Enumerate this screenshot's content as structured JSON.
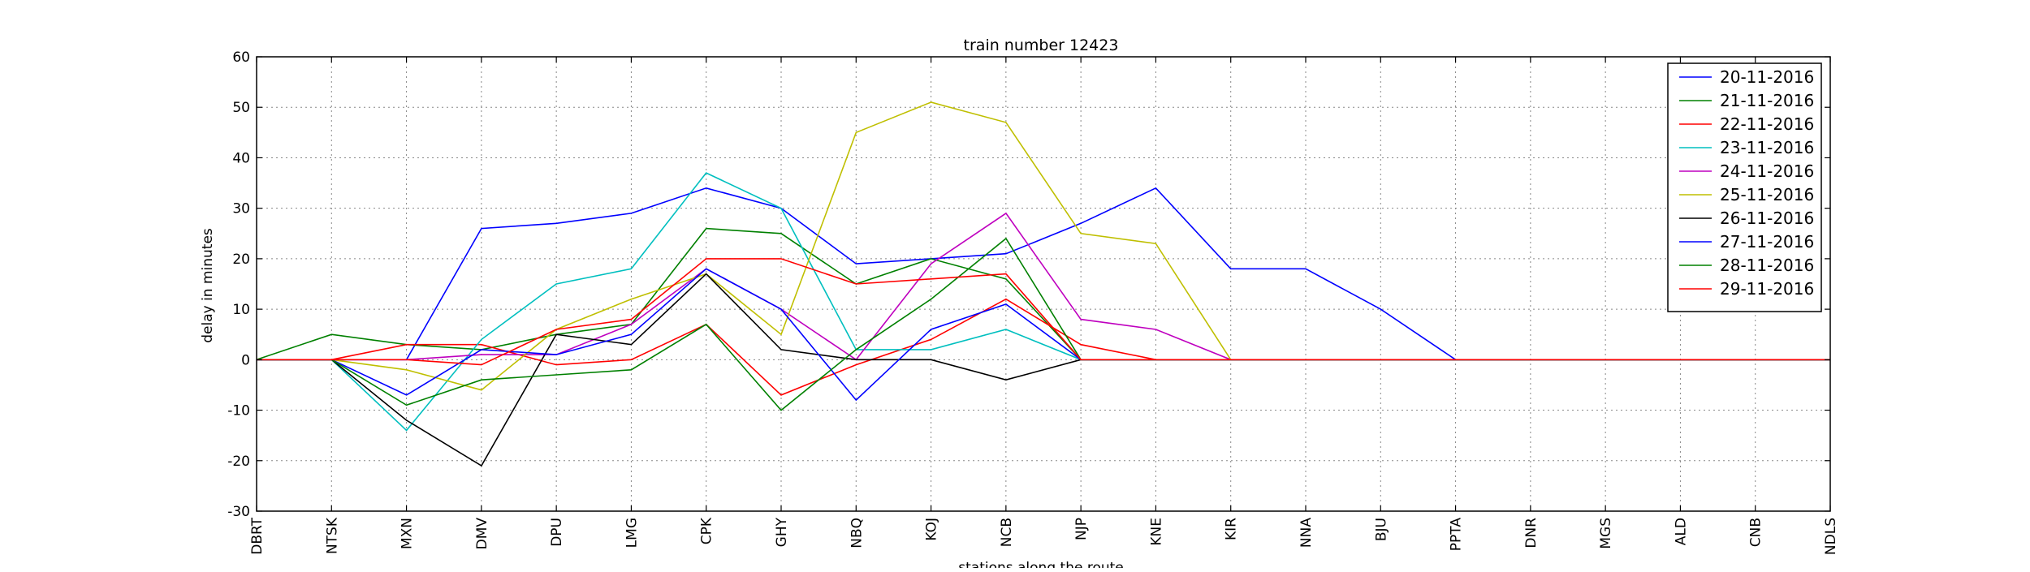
{
  "chart_data": {
    "type": "line",
    "title": "train number 12423",
    "xlabel": "stations along the route",
    "ylabel": "delay in minutes",
    "ylim": [
      -30,
      60
    ],
    "yticks": [
      -30,
      -20,
      -10,
      0,
      10,
      20,
      30,
      40,
      50,
      60
    ],
    "grid": true,
    "legend_position": "top-right",
    "categories": [
      "DBRT",
      "NTSK",
      "MXN",
      "DMV",
      "DPU",
      "LMG",
      "CPK",
      "GHY",
      "NBQ",
      "KOJ",
      "NCB",
      "NJP",
      "KNE",
      "KIR",
      "NNA",
      "BJU",
      "PPTA",
      "DNR",
      "MGS",
      "ALD",
      "CNB",
      "NDLS"
    ],
    "series": [
      {
        "name": "20-11-2016",
        "color": "#0000ff",
        "values": [
          0,
          0,
          0,
          26,
          27,
          29,
          34,
          30,
          19,
          20,
          21,
          27,
          34,
          18,
          18,
          10,
          0,
          0,
          0,
          0,
          0,
          0
        ]
      },
      {
        "name": "21-11-2016",
        "color": "#008000",
        "values": [
          0,
          5,
          3,
          2,
          5,
          7,
          26,
          25,
          15,
          20,
          16,
          0,
          0,
          0,
          0,
          0,
          0,
          0,
          0,
          0,
          0,
          0
        ]
      },
      {
        "name": "22-11-2016",
        "color": "#ff0000",
        "values": [
          0,
          0,
          3,
          3,
          -1,
          0,
          7,
          -7,
          -1,
          4,
          12,
          3,
          0,
          0,
          0,
          0,
          0,
          0,
          0,
          0,
          0,
          0
        ]
      },
      {
        "name": "23-11-2016",
        "color": "#00bfbf",
        "values": [
          0,
          0,
          -14,
          4,
          15,
          18,
          37,
          30,
          2,
          2,
          6,
          0,
          0,
          0,
          0,
          0,
          0,
          0,
          0,
          0,
          0,
          0
        ]
      },
      {
        "name": "24-11-2016",
        "color": "#bf00bf",
        "values": [
          0,
          0,
          0,
          1,
          1,
          7,
          18,
          10,
          0,
          19,
          29,
          8,
          6,
          0,
          0,
          0,
          0,
          0,
          0,
          0,
          0,
          0
        ]
      },
      {
        "name": "25-11-2016",
        "color": "#bfbf00",
        "values": [
          0,
          0,
          -2,
          -6,
          6,
          12,
          17,
          5,
          45,
          51,
          47,
          25,
          23,
          0,
          0,
          0,
          0,
          0,
          0,
          0,
          0,
          0
        ]
      },
      {
        "name": "26-11-2016",
        "color": "#000000",
        "values": [
          0,
          0,
          -12,
          -21,
          5,
          3,
          17,
          2,
          0,
          0,
          -4,
          0,
          0,
          0,
          0,
          0,
          0,
          0,
          0,
          0,
          0,
          0
        ]
      },
      {
        "name": "27-11-2016",
        "color": "#0000ff",
        "values": [
          0,
          0,
          -7,
          2,
          1,
          5,
          18,
          10,
          -8,
          6,
          11,
          0,
          0,
          0,
          0,
          0,
          0,
          0,
          0,
          0,
          0,
          0
        ]
      },
      {
        "name": "28-11-2016",
        "color": "#008000",
        "values": [
          0,
          0,
          -9,
          -4,
          -3,
          -2,
          7,
          -10,
          2,
          12,
          24,
          0,
          0,
          0,
          0,
          0,
          0,
          0,
          0,
          0,
          0,
          0
        ]
      },
      {
        "name": "29-11-2016",
        "color": "#ff0000",
        "values": [
          0,
          0,
          0,
          -1,
          6,
          8,
          20,
          20,
          15,
          16,
          17,
          0,
          0,
          0,
          0,
          0,
          0,
          0,
          0,
          0,
          0,
          0
        ]
      }
    ]
  }
}
